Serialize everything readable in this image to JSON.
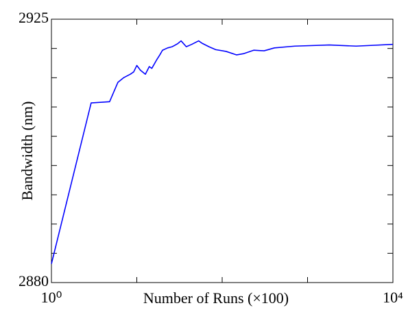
{
  "chart_data": {
    "type": "line",
    "xlabel": "Number of Runs (×100)",
    "ylabel": "Bandwidth (nm)",
    "xscale": "log",
    "x": [
      1,
      2.92,
      4.8,
      6,
      7,
      8.4,
      9.2,
      10,
      11,
      12.6,
      14,
      15,
      17,
      18.6,
      20,
      23,
      26,
      30,
      33,
      38,
      44,
      53,
      58,
      70,
      84,
      111,
      147,
      177,
      234,
      310,
      410,
      710,
      1800,
      3700,
      10000
    ],
    "series": [
      {
        "color": "#0000ff",
        "values": [
          2883.2,
          2910.7,
          2910.9,
          2914.2,
          2915.0,
          2915.6,
          2916.0,
          2917.1,
          2916.3,
          2915.6,
          2916.9,
          2916.6,
          2918.0,
          2918.9,
          2919.7,
          2920.1,
          2920.3,
          2920.8,
          2921.3,
          2920.3,
          2920.7,
          2921.3,
          2920.9,
          2920.3,
          2919.8,
          2919.5,
          2918.9,
          2919.1,
          2919.7,
          2919.6,
          2920.1,
          2920.4,
          2920.6,
          2920.4,
          2920.7
        ]
      }
    ],
    "xlim": [
      1,
      10000
    ],
    "xticks": [
      {
        "value": 1,
        "label": "10⁰"
      },
      {
        "value": 10000,
        "label": "10⁴"
      }
    ],
    "xminorticks": [
      10,
      100,
      1000
    ],
    "ylim": [
      2880,
      2925
    ],
    "yticks": [
      2880,
      2925
    ],
    "yminorticks": [
      2885,
      2890,
      2895,
      2900,
      2905,
      2910,
      2915,
      2920
    ]
  }
}
